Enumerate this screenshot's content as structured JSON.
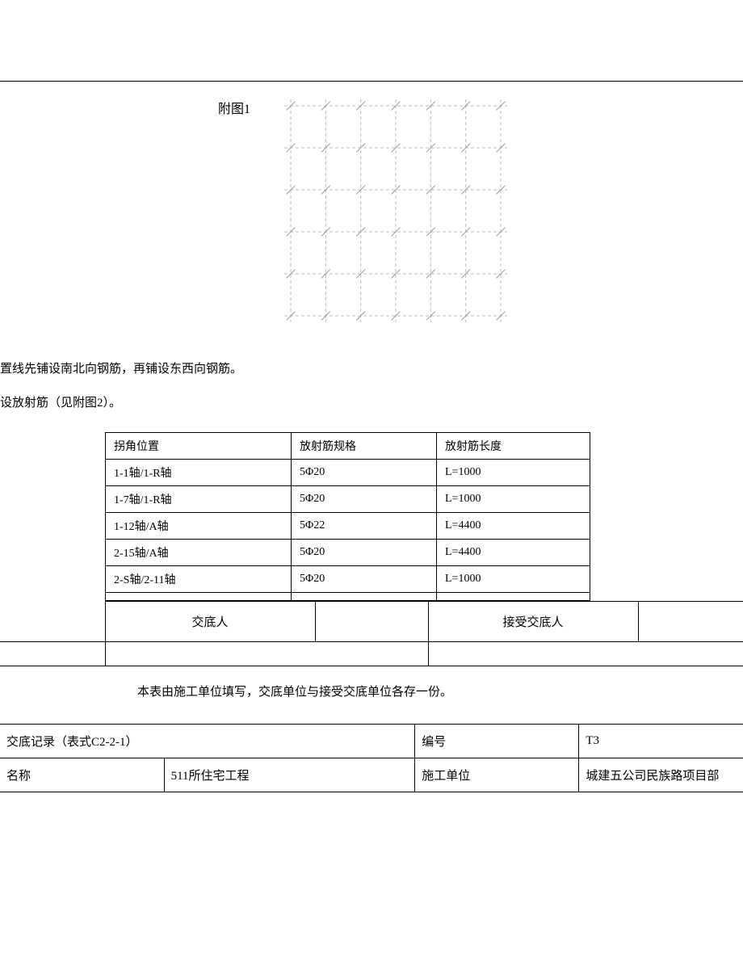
{
  "figure_label": "附图1",
  "text_line1": "置线先铺设南北向钢筋，再铺设东西向钢筋。",
  "text_line2": "设放射筋（见附图2）。",
  "rebar_table": {
    "headers": [
      "拐角位置",
      "放射筋规格",
      "放射筋长度"
    ],
    "rows": [
      [
        "1-1轴/1-R轴",
        "5Φ20",
        "L=1000"
      ],
      [
        "1-7轴/1-R轴",
        "5Φ20",
        "L=1000"
      ],
      [
        "1-12轴/A轴",
        "5Φ22",
        "L=4400"
      ],
      [
        "2-15轴/A轴",
        "5Φ20",
        "L=4400"
      ],
      [
        "2-S轴/2-11轴",
        "5Φ20",
        "L=1000"
      ]
    ]
  },
  "sign": {
    "giver_label": "交底人",
    "receiver_label": "接受交底人"
  },
  "footer_note": "本表由施工单位填写，交底单位与接受交底单位各存一份。",
  "record": {
    "title": "交底记录（表式C2-2-1）",
    "code_label": "编号",
    "code_value": "T3",
    "name_label": "名称",
    "name_value": "511所住宅工程",
    "unit_label": "施工单位",
    "unit_value": "城建五公司民族路项目部"
  },
  "diagram": {
    "cols": 7,
    "rows": 6,
    "line_color": "#bdbdbd",
    "tick_color": "#9e9e9e",
    "dash": "4,3",
    "tick_len": 9
  }
}
